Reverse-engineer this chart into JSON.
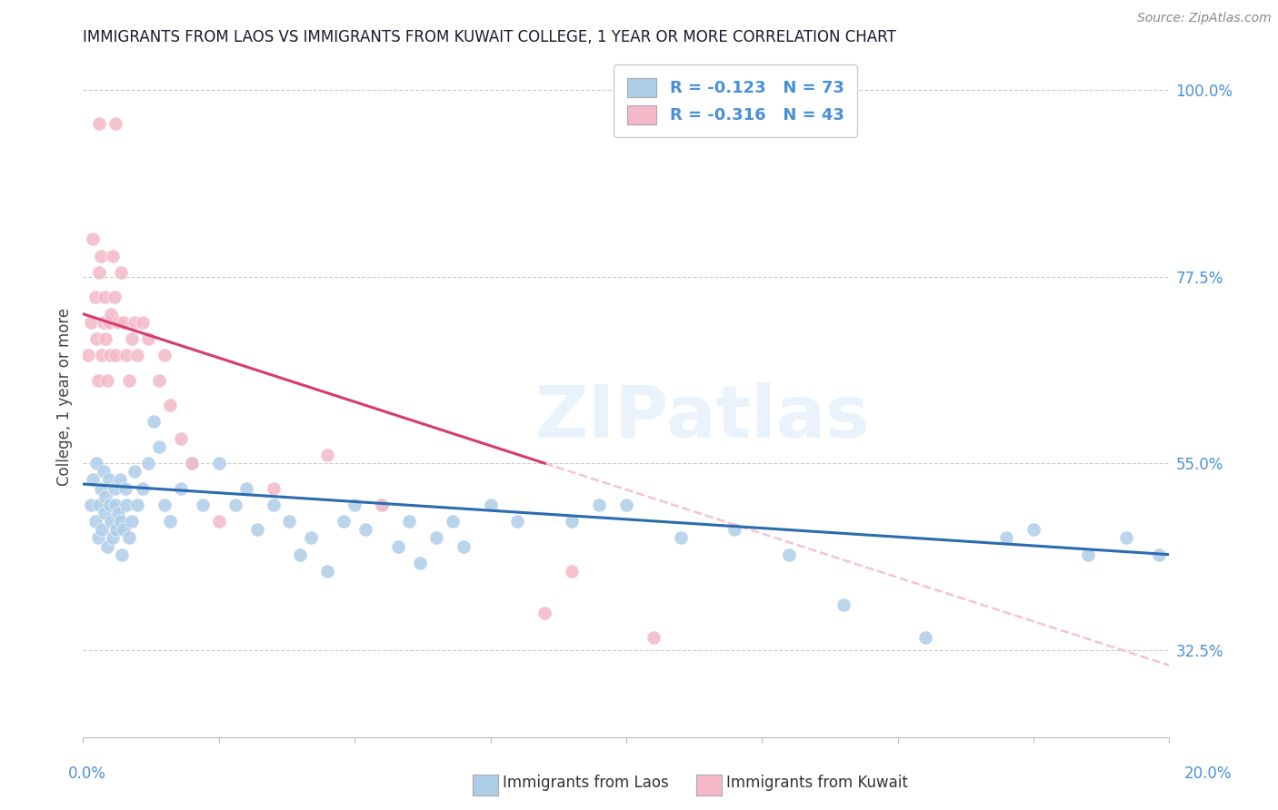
{
  "title": "IMMIGRANTS FROM LAOS VS IMMIGRANTS FROM KUWAIT COLLEGE, 1 YEAR OR MORE CORRELATION CHART",
  "source": "Source: ZipAtlas.com",
  "xmin": 0.0,
  "xmax": 20.0,
  "ymin": 22.0,
  "ymax": 104.0,
  "yticks": [
    32.5,
    55.0,
    77.5,
    100.0
  ],
  "ytick_labels": [
    "32.5%",
    "55.0%",
    "77.5%",
    "100.0%"
  ],
  "watermark": "ZIPatlas",
  "legend_entry1": "R = -0.123   N = 73",
  "legend_entry2": "R = -0.316   N = 43",
  "legend_label1": "Immigrants from Laos",
  "legend_label2": "Immigrants from Kuwait",
  "blue_color": "#aecde8",
  "pink_color": "#f4b8c8",
  "blue_line_color": "#2b6cb0",
  "pink_line_color": "#d63b6e",
  "dashed_line_color": "#f4b8c8",
  "blue_line_y0": 52.5,
  "blue_line_y1": 44.0,
  "pink_line_y0": 73.0,
  "pink_line_y1_at8": 55.0,
  "pink_solid_end_x": 8.5,
  "blue_dots_x": [
    0.15,
    0.18,
    0.22,
    0.25,
    0.28,
    0.3,
    0.32,
    0.35,
    0.38,
    0.4,
    0.42,
    0.45,
    0.48,
    0.5,
    0.52,
    0.55,
    0.58,
    0.6,
    0.62,
    0.65,
    0.68,
    0.7,
    0.72,
    0.75,
    0.78,
    0.8,
    0.85,
    0.9,
    0.95,
    1.0,
    1.1,
    1.2,
    1.3,
    1.4,
    1.5,
    1.6,
    1.8,
    2.0,
    2.2,
    2.5,
    2.8,
    3.0,
    3.2,
    3.5,
    3.8,
    4.0,
    4.2,
    4.5,
    4.8,
    5.0,
    5.2,
    5.5,
    5.8,
    6.0,
    6.2,
    6.5,
    6.8,
    7.0,
    7.5,
    8.0,
    9.0,
    9.5,
    10.0,
    11.0,
    12.0,
    13.0,
    14.0,
    15.5,
    17.0,
    17.5,
    18.5,
    19.2,
    19.8
  ],
  "blue_dots_y": [
    50,
    53,
    48,
    55,
    46,
    50,
    52,
    47,
    54,
    49,
    51,
    45,
    53,
    50,
    48,
    46,
    52,
    50,
    47,
    49,
    53,
    48,
    44,
    47,
    52,
    50,
    46,
    48,
    54,
    50,
    52,
    55,
    60,
    57,
    50,
    48,
    52,
    55,
    50,
    55,
    50,
    52,
    47,
    50,
    48,
    44,
    46,
    42,
    48,
    50,
    47,
    50,
    45,
    48,
    43,
    46,
    48,
    45,
    50,
    48,
    48,
    50,
    50,
    46,
    47,
    44,
    38,
    34,
    46,
    47,
    44,
    46,
    44
  ],
  "pink_dots_x": [
    0.1,
    0.15,
    0.18,
    0.22,
    0.25,
    0.28,
    0.3,
    0.32,
    0.35,
    0.38,
    0.4,
    0.42,
    0.45,
    0.48,
    0.5,
    0.52,
    0.55,
    0.58,
    0.6,
    0.65,
    0.7,
    0.75,
    0.8,
    0.85,
    0.9,
    0.95,
    1.0,
    1.1,
    1.2,
    1.4,
    1.6,
    1.8,
    2.0,
    2.5,
    3.5,
    4.5,
    5.5,
    8.5,
    9.0,
    10.5,
    1.5,
    0.3,
    0.6
  ],
  "pink_dots_y": [
    68,
    72,
    82,
    75,
    70,
    65,
    78,
    80,
    68,
    72,
    75,
    70,
    65,
    72,
    68,
    73,
    80,
    75,
    68,
    72,
    78,
    72,
    68,
    65,
    70,
    72,
    68,
    72,
    70,
    65,
    62,
    58,
    55,
    48,
    52,
    56,
    50,
    37,
    42,
    34,
    68,
    96,
    96
  ]
}
